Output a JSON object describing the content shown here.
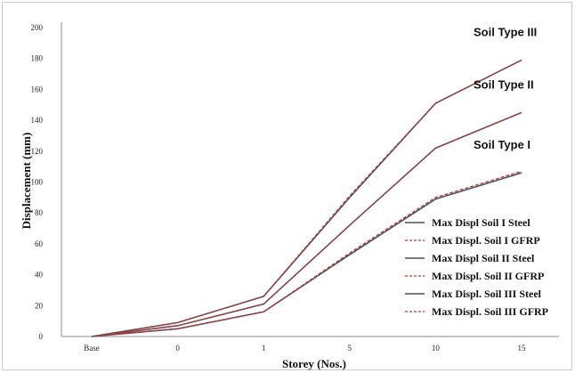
{
  "chart_data": {
    "type": "line",
    "categories": [
      "Base",
      "0",
      "1",
      "5",
      "10",
      "15"
    ],
    "xlabel": "Storey (Nos.)",
    "ylabel": "Displacement (mm)",
    "ylim": [
      0,
      200
    ],
    "yticks": [
      0,
      20,
      40,
      60,
      80,
      100,
      120,
      140,
      160,
      180,
      200
    ],
    "grid": false,
    "legend_position": "right",
    "series": [
      {
        "name": "Max Displ Soil I Steel",
        "color": "#44546a",
        "dash": false,
        "values": [
          0,
          5,
          16,
          53,
          89,
          106
        ]
      },
      {
        "name": "Max Displ. Soil I GFRP",
        "color": "#c0392b",
        "dash": true,
        "values": [
          0,
          5,
          16,
          54,
          90,
          107
        ]
      },
      {
        "name": "Max Displ Soil II Steel",
        "color": "#44546a",
        "dash": false,
        "values": [
          0,
          7,
          21,
          72,
          122,
          145
        ]
      },
      {
        "name": "Max Displ. Soil II GFRP",
        "color": "#c0392b",
        "dash": true,
        "values": [
          0,
          7,
          21,
          72,
          122,
          145
        ]
      },
      {
        "name": "Max Displ. Soil III Steel",
        "color": "#44546a",
        "dash": false,
        "values": [
          0,
          9,
          26,
          90,
          151,
          179
        ]
      },
      {
        "name": "Max Displ. Soil III GFRP",
        "color": "#c0392b",
        "dash": true,
        "values": [
          0,
          9,
          26,
          91,
          151,
          179
        ]
      }
    ],
    "annotations": [
      {
        "text": "Soil Type III",
        "attach_series": 4
      },
      {
        "text": "Soil Type II",
        "attach_series": 2
      },
      {
        "text": "Soil Type I",
        "attach_series": 0
      }
    ]
  }
}
